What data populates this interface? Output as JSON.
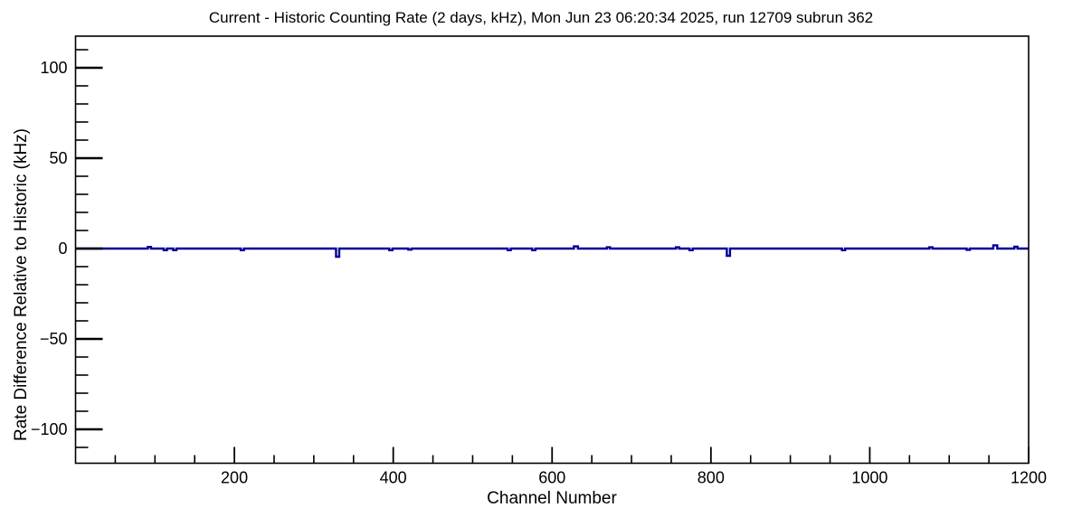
{
  "chart_data": {
    "type": "line",
    "title": "Current - Historic Counting Rate (2 days, kHz), Mon Jun 23 06:20:34 2025, run 12709 subrun 362",
    "xlabel": "Channel Number",
    "ylabel": "Rate Difference Relative to Historic (kHz)",
    "xlim": [
      0,
      1200
    ],
    "ylim": [
      -118.75,
      117.5
    ],
    "x_major_ticks": [
      200,
      400,
      600,
      800,
      1000,
      1200
    ],
    "x_major_tick_labels": [
      "200",
      "400",
      "600",
      "800",
      "1000",
      "1200"
    ],
    "x_minor_step": 50,
    "y_major_ticks": [
      -100,
      -50,
      0,
      50,
      100
    ],
    "y_major_tick_labels": [
      "−100",
      "−50",
      "0",
      "50",
      "100"
    ],
    "y_minor_step": 10,
    "grid": false,
    "legend": null,
    "line_color": "#000099",
    "axis_color": "#000000",
    "baseline_value": 0,
    "series": [
      {
        "name": "rate-difference-histogram",
        "description": "Histogram of current minus historic counting rate per channel; flat at 0 kHz except listed deviations",
        "baseline": 0,
        "deviations": [
          {
            "channel": 93,
            "value": 0.9,
            "width": 4
          },
          {
            "channel": 113,
            "value": -0.9,
            "width": 4
          },
          {
            "channel": 125,
            "value": -0.9,
            "width": 4
          },
          {
            "channel": 210,
            "value": -0.9,
            "width": 4
          },
          {
            "channel": 330,
            "value": -4.5,
            "width": 4
          },
          {
            "channel": 397,
            "value": -0.9,
            "width": 4
          },
          {
            "channel": 421,
            "value": -0.6,
            "width": 4
          },
          {
            "channel": 546,
            "value": -0.9,
            "width": 4
          },
          {
            "channel": 577,
            "value": -0.9,
            "width": 4
          },
          {
            "channel": 630,
            "value": 1.2,
            "width": 5
          },
          {
            "channel": 671,
            "value": 0.7,
            "width": 4
          },
          {
            "channel": 758,
            "value": 0.7,
            "width": 4
          },
          {
            "channel": 775,
            "value": -0.9,
            "width": 4
          },
          {
            "channel": 822,
            "value": -4.0,
            "width": 4
          },
          {
            "channel": 967,
            "value": -0.9,
            "width": 4
          },
          {
            "channel": 1077,
            "value": 0.7,
            "width": 4
          },
          {
            "channel": 1124,
            "value": -0.7,
            "width": 4
          },
          {
            "channel": 1158,
            "value": 1.8,
            "width": 5
          },
          {
            "channel": 1184,
            "value": 1.0,
            "width": 4
          }
        ]
      }
    ]
  }
}
